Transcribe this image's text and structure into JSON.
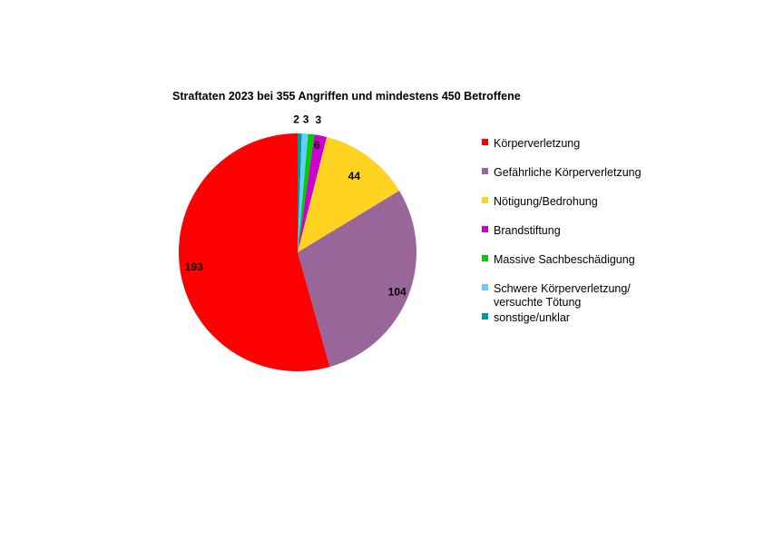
{
  "chart_data": {
    "type": "pie",
    "title": "Straftaten 2023 bei 355 Angriffen und mindestens 450 Betroffene",
    "categories": [
      "Körperverletzung",
      "Gefährliche Körperverletzung",
      "Nötigung/Bedrohung",
      "Brandstiftung",
      "Massive Sachbeschädigung",
      "Schwere Körperverletzung/ versuchte Tötung",
      "sonstige/unklar"
    ],
    "legend_lines": [
      [
        "Körperverletzung"
      ],
      [
        "Gefährliche Körperverletzung"
      ],
      [
        "Nötigung/Bedrohung"
      ],
      [
        "Brandstiftung"
      ],
      [
        "Massive Sachbeschädigung"
      ],
      [
        "Schwere Körperverletzung/",
        "versuchte Tötung"
      ],
      [
        "sonstige/unklar"
      ]
    ],
    "values": [
      193,
      104,
      44,
      6,
      3,
      3,
      2
    ],
    "colors": [
      "#ff0000",
      "#996699",
      "#ffd320",
      "#cc00cc",
      "#00cc00",
      "#66ccff",
      "#009999"
    ],
    "legend_position": "right",
    "slice_order": "clockwise from top, starting with last category"
  }
}
